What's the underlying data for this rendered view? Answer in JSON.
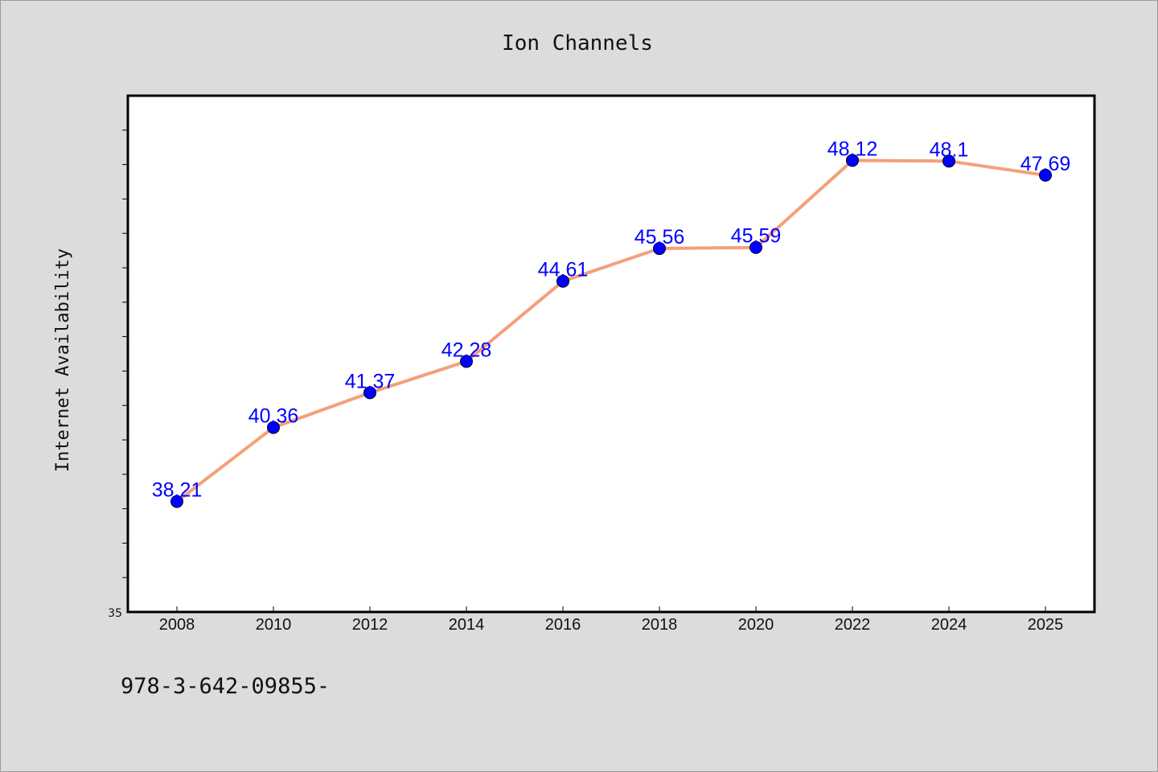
{
  "chart_data": {
    "type": "line",
    "title": "Ion Channels",
    "xlabel": "",
    "ylabel": "Internet Availability",
    "x": [
      "2008",
      "2010",
      "2012",
      "2014",
      "2016",
      "2018",
      "2020",
      "2022",
      "2024",
      "2025"
    ],
    "series": [
      {
        "values": [
          38.21,
          40.36,
          41.37,
          42.28,
          44.61,
          45.56,
          45.59,
          48.12,
          48.1,
          47.69
        ],
        "data_labels": [
          "38.21",
          "40.36",
          "41.37",
          "42.28",
          "44.61",
          "45.56",
          "45.59",
          "48.12",
          "48.1",
          "47.69"
        ],
        "line_color": "#f4a07a",
        "marker_color": "#0000ff"
      }
    ],
    "ylim": [
      35,
      50
    ],
    "y_tick_labels": [
      "35"
    ],
    "grid": false,
    "legend": "none"
  },
  "footer_text": "978-3-642-09855-",
  "colors": {
    "background": "#dcdcdc",
    "plot_background": "#ffffff",
    "label_color": "#0000ff"
  }
}
